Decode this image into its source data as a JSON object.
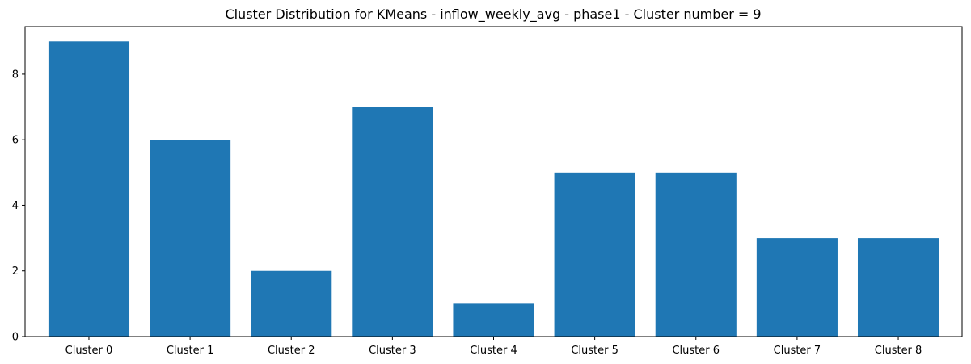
{
  "chart_data": {
    "type": "bar",
    "title": "Cluster Distribution for KMeans - inflow_weekly_avg - phase1 - Cluster number = 9",
    "xlabel": "",
    "ylabel": "",
    "categories": [
      "Cluster 0",
      "Cluster 1",
      "Cluster 2",
      "Cluster 3",
      "Cluster 4",
      "Cluster 5",
      "Cluster 6",
      "Cluster 7",
      "Cluster 8"
    ],
    "values": [
      9,
      6,
      2,
      7,
      1,
      5,
      5,
      3,
      3
    ],
    "ylim": [
      0,
      9.45
    ],
    "yticks": [
      "0",
      "2",
      "4",
      "6",
      "8"
    ],
    "grid": false,
    "legend": "none",
    "bar_color": "#1f77b4"
  }
}
